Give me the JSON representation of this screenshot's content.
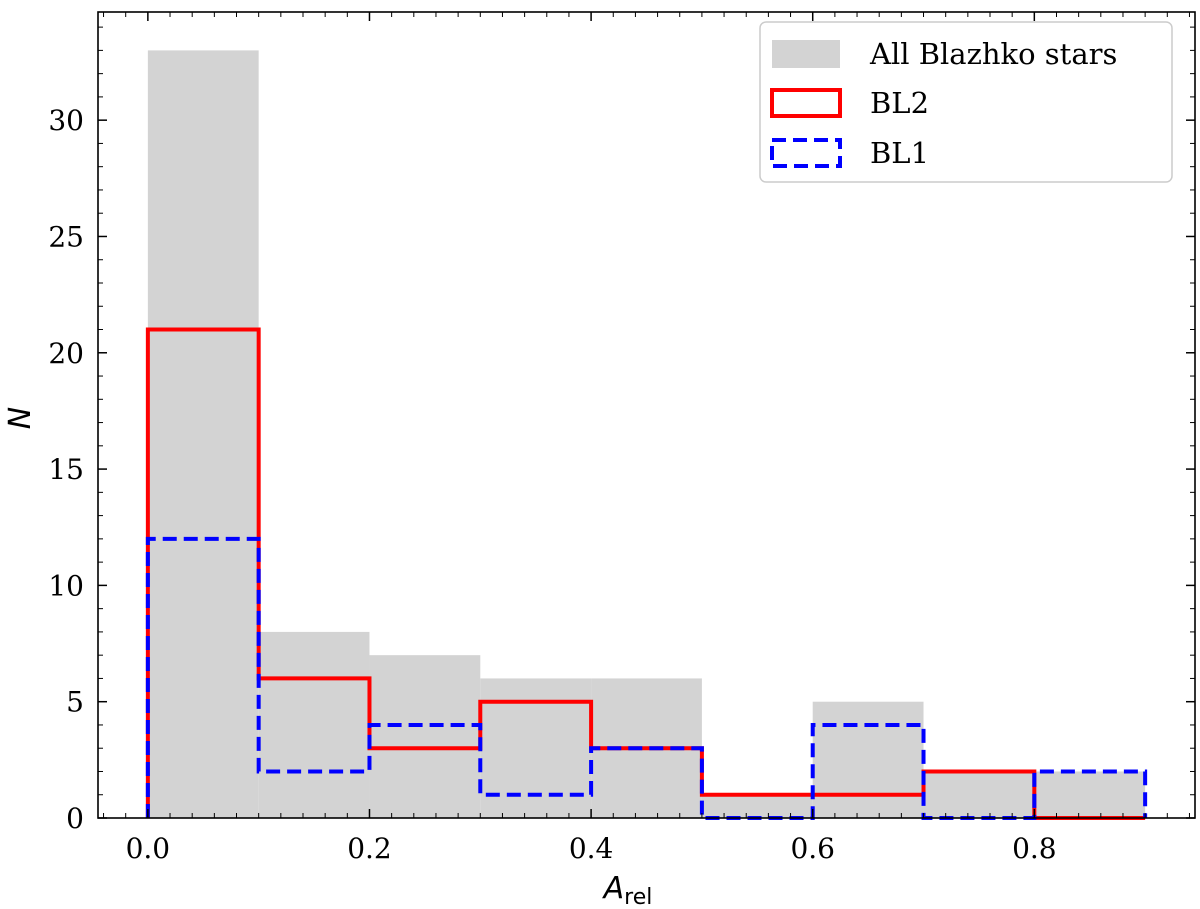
{
  "chart_data": {
    "type": "histogram",
    "xlabel": "A",
    "xlabel_sub": "rel",
    "ylabel": "N",
    "xlim": [
      -0.045,
      0.945
    ],
    "ylim": [
      0,
      34.65
    ],
    "xticks": [
      0.0,
      0.2,
      0.4,
      0.6,
      0.8
    ],
    "xtick_labels": [
      "0.0",
      "0.2",
      "0.4",
      "0.6",
      "0.8"
    ],
    "yticks": [
      0,
      5,
      10,
      15,
      20,
      25,
      30
    ],
    "ytick_labels": [
      "0",
      "5",
      "10",
      "15",
      "20",
      "25",
      "30"
    ],
    "bin_edges": [
      0.0,
      0.1,
      0.2,
      0.3,
      0.4,
      0.5,
      0.6,
      0.7,
      0.8,
      0.9
    ],
    "series": [
      {
        "name": "All Blazhko stars",
        "style": "filled",
        "color": "#d3d3d3",
        "values": [
          33,
          8,
          7,
          6,
          6,
          1,
          5,
          2,
          2
        ]
      },
      {
        "name": "BL2",
        "style": "step-solid",
        "color": "#ff0000",
        "values": [
          21,
          6,
          3,
          5,
          3,
          1,
          1,
          2,
          0
        ]
      },
      {
        "name": "BL1",
        "style": "step-dashed",
        "color": "#0000ff",
        "values": [
          12,
          2,
          4,
          1,
          3,
          0,
          4,
          0,
          2
        ]
      }
    ],
    "legend_position": "top-right",
    "grid": false
  }
}
